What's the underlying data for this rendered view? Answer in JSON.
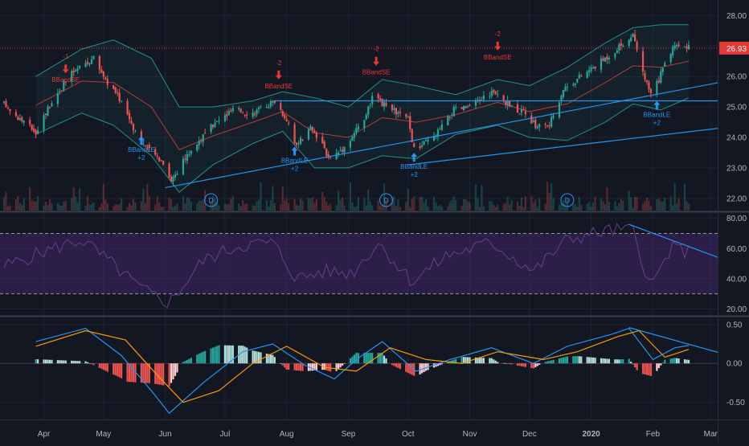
{
  "colors": {
    "background": "#131722",
    "grid": "#1f2433",
    "up": "#26a69a",
    "down": "#ef5350",
    "bollinger": "#26a69a",
    "bb_mid": "#b53a3a",
    "trendline": "#2196f3",
    "rsi_band": "#4a2a78",
    "rsi_line": "#6b3d8f",
    "macd_line": "#2196f3",
    "signal_line": "#ff9800",
    "text": "#b2b5be",
    "price_tag": "#e53935",
    "sell_arrow": "#e53935",
    "buy_arrow": "#2196f3"
  },
  "x_axis_labels": [
    {
      "text": "Apr",
      "date": "2019-04-01",
      "bold": false
    },
    {
      "text": "May",
      "date": "2019-05-01",
      "bold": false
    },
    {
      "text": "Jun",
      "date": "2019-06-01",
      "bold": false
    },
    {
      "text": "Jul",
      "date": "2019-07-01",
      "bold": false
    },
    {
      "text": "Aug",
      "date": "2019-08-01",
      "bold": false
    },
    {
      "text": "Sep",
      "date": "2019-09-01",
      "bold": false
    },
    {
      "text": "Oct",
      "date": "2019-10-01",
      "bold": false
    },
    {
      "text": "Nov",
      "date": "2019-11-01",
      "bold": false
    },
    {
      "text": "Dec",
      "date": "2019-12-01",
      "bold": false
    },
    {
      "text": "2020",
      "date": "2020-01-01",
      "bold": true
    },
    {
      "text": "Feb",
      "date": "2020-02-01",
      "bold": false
    },
    {
      "text": "Mar",
      "date": "2020-03-01",
      "bold": false
    }
  ],
  "chart_data": [
    {
      "type": "candlestick",
      "panel": "price",
      "y_ticks": [
        "28.00",
        "27.00",
        "26.00",
        "25.00",
        "24.00",
        "23.00",
        "22.00"
      ],
      "ylim": [
        21.6,
        28.3
      ],
      "last_price": "26.93",
      "price_path": [
        [
          "2019-03-12",
          25.1
        ],
        [
          "2019-03-20",
          24.6
        ],
        [
          "2019-03-28",
          24.2
        ],
        [
          "2019-04-05",
          25.2
        ],
        [
          "2019-04-15",
          26.1
        ],
        [
          "2019-04-26",
          26.6
        ],
        [
          "2019-05-03",
          25.8
        ],
        [
          "2019-05-10",
          25.2
        ],
        [
          "2019-05-17",
          24.2
        ],
        [
          "2019-05-22",
          23.7
        ],
        [
          "2019-05-31",
          23.2
        ],
        [
          "2019-06-04",
          22.6
        ],
        [
          "2019-06-14",
          23.6
        ],
        [
          "2019-06-25",
          24.4
        ],
        [
          "2019-07-05",
          24.9
        ],
        [
          "2019-07-15",
          24.8
        ],
        [
          "2019-07-26",
          25.2
        ],
        [
          "2019-08-02",
          24.5
        ],
        [
          "2019-08-06",
          23.7
        ],
        [
          "2019-08-13",
          24.3
        ],
        [
          "2019-08-23",
          23.3
        ],
        [
          "2019-08-30",
          23.7
        ],
        [
          "2019-09-09",
          24.6
        ],
        [
          "2019-09-13",
          25.3
        ],
        [
          "2019-09-23",
          24.9
        ],
        [
          "2019-10-01",
          24.6
        ],
        [
          "2019-10-04",
          23.6
        ],
        [
          "2019-10-14",
          24.0
        ],
        [
          "2019-10-24",
          24.9
        ],
        [
          "2019-11-01",
          25.0
        ],
        [
          "2019-11-12",
          25.5
        ],
        [
          "2019-11-18",
          25.2
        ],
        [
          "2019-11-28",
          24.8
        ],
        [
          "2019-12-04",
          24.4
        ],
        [
          "2019-12-11",
          24.4
        ],
        [
          "2019-12-18",
          25.6
        ],
        [
          "2019-12-31",
          26.2
        ],
        [
          "2020-01-10",
          26.7
        ],
        [
          "2020-01-17",
          27.1
        ],
        [
          "2020-01-22",
          27.3
        ],
        [
          "2020-01-27",
          26.1
        ],
        [
          "2020-01-31",
          25.4
        ],
        [
          "2020-02-04",
          25.9
        ],
        [
          "2020-02-07",
          26.4
        ],
        [
          "2020-02-12",
          27.1
        ],
        [
          "2020-02-19",
          26.93
        ]
      ],
      "bollinger_upper_path": [
        [
          "2019-03-28",
          26.0
        ],
        [
          "2019-04-20",
          26.9
        ],
        [
          "2019-05-06",
          27.2
        ],
        [
          "2019-05-25",
          26.6
        ],
        [
          "2019-06-08",
          25.0
        ],
        [
          "2019-06-25",
          25.0
        ],
        [
          "2019-07-15",
          25.2
        ],
        [
          "2019-07-30",
          25.5
        ],
        [
          "2019-08-15",
          25.3
        ],
        [
          "2019-09-01",
          25.0
        ],
        [
          "2019-09-18",
          25.9
        ],
        [
          "2019-10-05",
          25.7
        ],
        [
          "2019-10-25",
          25.4
        ],
        [
          "2019-11-15",
          25.9
        ],
        [
          "2019-12-01",
          25.7
        ],
        [
          "2019-12-20",
          26.3
        ],
        [
          "2020-01-08",
          27.1
        ],
        [
          "2020-01-22",
          27.6
        ],
        [
          "2020-02-05",
          27.7
        ],
        [
          "2020-02-19",
          27.7
        ]
      ],
      "bollinger_lower_path": [
        [
          "2019-03-28",
          24.1
        ],
        [
          "2019-04-20",
          24.8
        ],
        [
          "2019-05-06",
          24.4
        ],
        [
          "2019-05-25",
          23.4
        ],
        [
          "2019-06-08",
          22.2
        ],
        [
          "2019-06-25",
          23.1
        ],
        [
          "2019-07-15",
          23.8
        ],
        [
          "2019-07-30",
          24.2
        ],
        [
          "2019-08-15",
          23.0
        ],
        [
          "2019-09-01",
          23.0
        ],
        [
          "2019-09-18",
          23.4
        ],
        [
          "2019-10-05",
          23.3
        ],
        [
          "2019-10-25",
          24.1
        ],
        [
          "2019-11-15",
          24.4
        ],
        [
          "2019-12-01",
          24.0
        ],
        [
          "2019-12-20",
          23.9
        ],
        [
          "2020-01-08",
          24.5
        ],
        [
          "2020-01-22",
          25.1
        ],
        [
          "2020-02-05",
          24.9
        ],
        [
          "2020-02-19",
          25.3
        ]
      ],
      "trendlines": [
        {
          "from": [
            "2019-06-01",
            22.35
          ],
          "to": [
            "2020-03-05",
            25.8
          ]
        },
        {
          "from": [
            "2019-10-01",
            23.1
          ],
          "to": [
            "2020-03-05",
            24.3
          ]
        },
        {
          "from": [
            "2019-07-26",
            25.2
          ],
          "to": [
            "2020-03-05",
            25.2
          ]
        }
      ],
      "signals": [
        {
          "kind": "sell",
          "date": "2019-04-12",
          "price": 26.0,
          "top_label": "-1",
          "label": "BBandSE"
        },
        {
          "kind": "buy",
          "date": "2019-05-20",
          "price": 24.1,
          "top_label": "BBandLE",
          "label": "+2"
        },
        {
          "kind": "sell",
          "date": "2019-07-28",
          "price": 25.8,
          "top_label": "-2",
          "label": "BBandSE"
        },
        {
          "kind": "buy",
          "date": "2019-08-05",
          "price": 23.75,
          "top_label": "BBandLE",
          "label": "+2"
        },
        {
          "kind": "sell",
          "date": "2019-09-15",
          "price": 26.25,
          "top_label": "-2",
          "label": "BBandSE"
        },
        {
          "kind": "buy",
          "date": "2019-10-04",
          "price": 23.55,
          "top_label": "BBandLE",
          "label": "+2"
        },
        {
          "kind": "sell",
          "date": "2019-11-15",
          "price": 26.75,
          "top_label": "-2",
          "label": "BBandSE"
        },
        {
          "kind": "buy",
          "date": "2020-02-03",
          "price": 25.25,
          "top_label": "BBandLE",
          "label": "+2"
        }
      ],
      "dividends": [
        {
          "date": "2019-06-24",
          "label": "D"
        },
        {
          "date": "2019-09-20",
          "label": "D"
        },
        {
          "date": "2019-12-20",
          "label": "D"
        }
      ]
    },
    {
      "type": "line",
      "panel": "rsi",
      "y_ticks": [
        "80.00",
        "60.00",
        "40.00",
        "20.00"
      ],
      "ylim": [
        16,
        83
      ],
      "band": [
        30,
        70
      ],
      "series_path": [
        [
          "2019-03-12",
          48
        ],
        [
          "2019-04-01",
          58
        ],
        [
          "2019-04-20",
          66
        ],
        [
          "2019-05-05",
          50
        ],
        [
          "2019-05-20",
          33
        ],
        [
          "2019-06-03",
          24
        ],
        [
          "2019-06-20",
          52
        ],
        [
          "2019-07-08",
          62
        ],
        [
          "2019-07-25",
          64
        ],
        [
          "2019-08-06",
          40
        ],
        [
          "2019-08-20",
          45
        ],
        [
          "2019-09-03",
          44
        ],
        [
          "2019-09-16",
          64
        ],
        [
          "2019-10-03",
          38
        ],
        [
          "2019-10-20",
          55
        ],
        [
          "2019-11-12",
          64
        ],
        [
          "2019-12-03",
          45
        ],
        [
          "2019-12-20",
          66
        ],
        [
          "2020-01-10",
          72
        ],
        [
          "2020-01-22",
          72
        ],
        [
          "2020-01-31",
          34
        ],
        [
          "2020-02-10",
          60
        ],
        [
          "2020-02-19",
          58
        ]
      ],
      "trendline": {
        "from": [
          "2020-01-20",
          76
        ],
        "to": [
          "2020-03-05",
          54
        ]
      }
    },
    {
      "type": "bar",
      "panel": "macd",
      "y_ticks": [
        "0.50",
        "0.00",
        "-0.50"
      ],
      "ylim": [
        -0.72,
        0.58
      ],
      "macd_path": [
        [
          "2019-03-28",
          0.28
        ],
        [
          "2019-04-22",
          0.45
        ],
        [
          "2019-05-10",
          0.1
        ],
        [
          "2019-05-25",
          -0.35
        ],
        [
          "2019-06-03",
          -0.64
        ],
        [
          "2019-06-20",
          -0.25
        ],
        [
          "2019-07-10",
          0.15
        ],
        [
          "2019-07-25",
          0.25
        ],
        [
          "2019-08-10",
          -0.02
        ],
        [
          "2019-08-25",
          -0.2
        ],
        [
          "2019-09-05",
          0.05
        ],
        [
          "2019-09-18",
          0.28
        ],
        [
          "2019-10-05",
          -0.1
        ],
        [
          "2019-10-22",
          0.05
        ],
        [
          "2019-11-12",
          0.2
        ],
        [
          "2019-12-03",
          0.0
        ],
        [
          "2019-12-20",
          0.22
        ],
        [
          "2020-01-12",
          0.38
        ],
        [
          "2020-01-20",
          0.45
        ],
        [
          "2020-02-01",
          0.05
        ],
        [
          "2020-02-12",
          0.2
        ],
        [
          "2020-02-19",
          0.23
        ]
      ],
      "signal_path": [
        [
          "2019-03-28",
          0.22
        ],
        [
          "2019-04-22",
          0.42
        ],
        [
          "2019-05-12",
          0.3
        ],
        [
          "2019-05-28",
          -0.15
        ],
        [
          "2019-06-10",
          -0.5
        ],
        [
          "2019-06-28",
          -0.35
        ],
        [
          "2019-07-15",
          0.0
        ],
        [
          "2019-08-01",
          0.22
        ],
        [
          "2019-08-20",
          -0.05
        ],
        [
          "2019-09-05",
          -0.1
        ],
        [
          "2019-09-22",
          0.2
        ],
        [
          "2019-10-10",
          0.05
        ],
        [
          "2019-10-28",
          0.0
        ],
        [
          "2019-11-15",
          0.15
        ],
        [
          "2019-12-08",
          0.05
        ],
        [
          "2019-12-25",
          0.15
        ],
        [
          "2020-01-15",
          0.35
        ],
        [
          "2020-01-25",
          0.42
        ],
        [
          "2020-02-07",
          0.08
        ],
        [
          "2020-02-19",
          0.18
        ]
      ],
      "trendline": {
        "from": [
          "2020-01-20",
          0.46
        ],
        "to": [
          "2020-03-05",
          0.14
        ]
      }
    }
  ]
}
